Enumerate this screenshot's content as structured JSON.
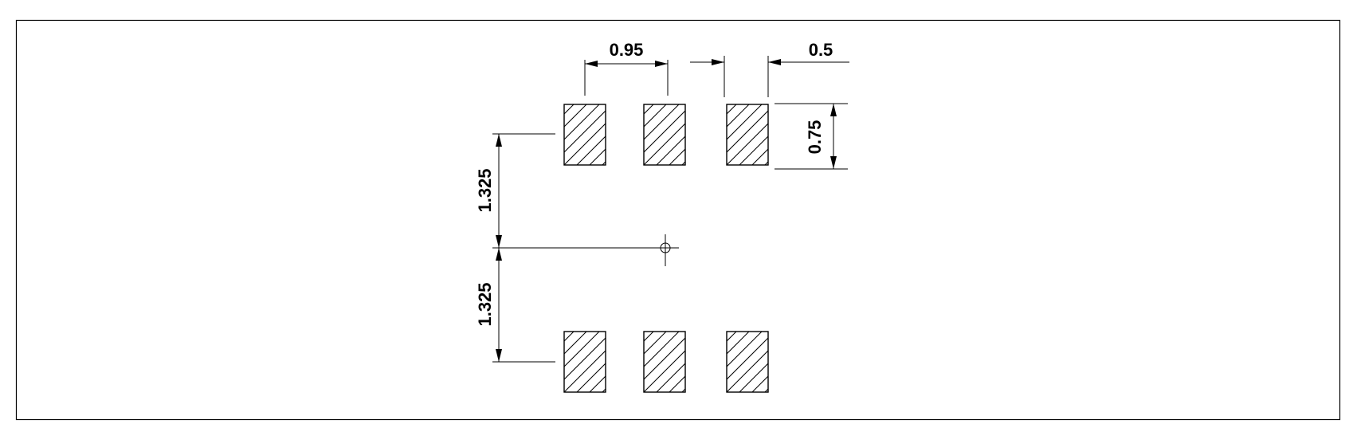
{
  "drawing": {
    "title": "",
    "pads": {
      "rows": 2,
      "columns": 3,
      "pad_size": {
        "width": 0.5,
        "height": 0.75
      },
      "fill": "diagonal-hatch"
    },
    "dimensions": {
      "pitch": "0.95",
      "pad_width": "0.5",
      "pad_height": "0.75",
      "upper_offset": "1.325",
      "lower_offset": "1.325"
    },
    "center_marker": "crosshair-circle-icon"
  }
}
